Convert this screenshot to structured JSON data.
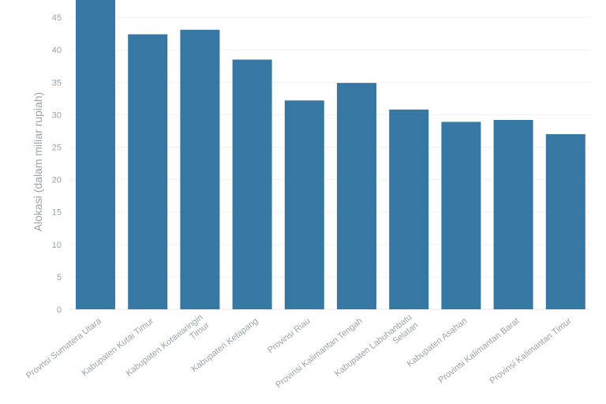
{
  "chart_data": {
    "type": "bar",
    "title": "",
    "xlabel": "",
    "ylabel": "Alokasi (dalam miliar rupiah)",
    "ylim": [
      0,
      48
    ],
    "yticks": [
      0,
      5,
      10,
      15,
      20,
      25,
      30,
      35,
      40,
      45
    ],
    "grid": true,
    "bar_color": "#3678a3",
    "categories": [
      "Provnsi Sumatera Utara",
      "Kabupaten Kutai Timur",
      "Kabupaten Kotawaringin Timur",
      "Kabupaten Ketapang",
      "Provinsi Riau",
      "Provinsi Kalimantan Tengah",
      "Kabupaten Labuhanbatu Selatan",
      "Kabupaten Asahan",
      "Provinsi Kalimantan Barat",
      "Provinsi Kalimantan Timur"
    ],
    "values": [
      48.2,
      42.4,
      43.1,
      38.5,
      32.2,
      34.9,
      30.8,
      28.9,
      29.2,
      27.0
    ]
  }
}
